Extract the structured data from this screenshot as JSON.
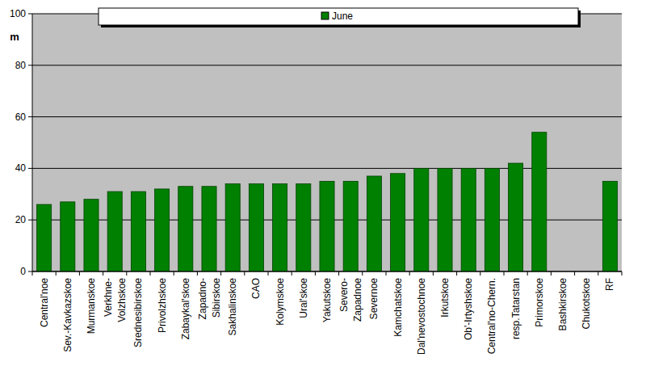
{
  "chart_data": {
    "type": "bar",
    "y_label": "m",
    "categories": [
      "Central'noe",
      "Sev.-Kavkazskoe",
      "Murmanskoe",
      "Verkhne-\nVolzhskoe",
      "Srednesibirskoe",
      "Privolzhskoe",
      "Zabaykal'skoe",
      "Zapadno-\nSibirskoe",
      "Sakhalinskoe",
      "CAO",
      "Kolymskoe",
      "Ural'skoe",
      "Yakutskoe",
      "Severo-\nZapadnoe",
      "Severnoe",
      "Kamchatskoe",
      "Dal'nevostochnoe",
      "Irkutskoe",
      "Ob'-Irtyshskoe",
      "Central'no-Chern.",
      "resp.Tatarstan",
      "Primorskoe",
      "Bashkirskoe",
      "Chukotskoe",
      "RF"
    ],
    "series": [
      {
        "name": "June",
        "color": "#008000",
        "values": [
          26,
          27,
          28,
          31,
          31,
          32,
          33,
          33,
          34,
          34,
          34,
          34,
          35,
          35,
          37,
          38,
          40,
          40,
          40,
          40,
          42,
          54,
          null,
          null,
          35
        ]
      }
    ],
    "ylim": [
      0,
      100
    ],
    "yticks": [
      0,
      20,
      40,
      60,
      80,
      100
    ],
    "grid": true,
    "legend": "top"
  }
}
